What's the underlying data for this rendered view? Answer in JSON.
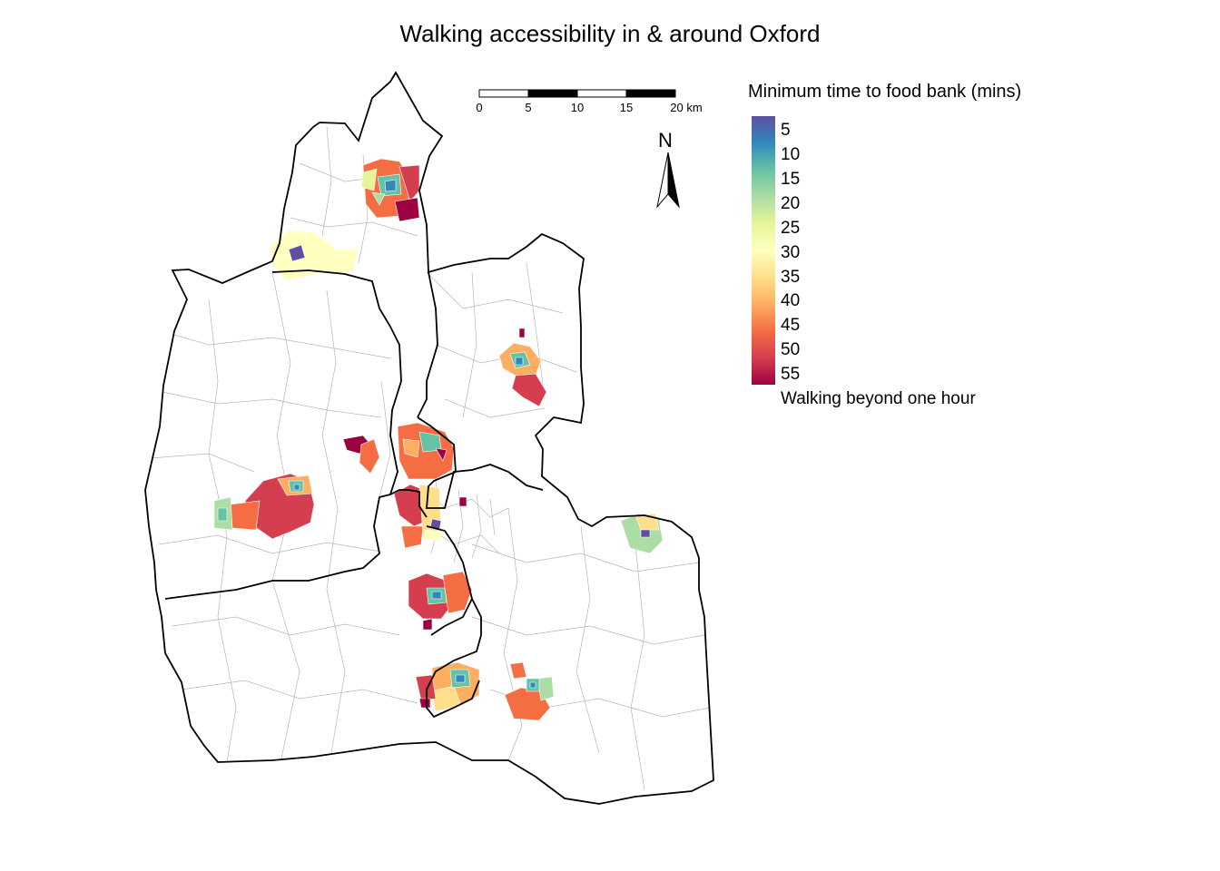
{
  "title": "Walking accessibility in & around Oxford",
  "legend": {
    "title": "Minimum time to food bank (mins)",
    "ticks": [
      "5",
      "10",
      "15",
      "20",
      "25",
      "30",
      "35",
      "40",
      "45",
      "50",
      "55"
    ],
    "na_label": "Walking beyond one hour",
    "colors": [
      "#5e4fa2",
      "#3288bd",
      "#66c2a5",
      "#abdda4",
      "#e6f598",
      "#ffffbf",
      "#fee08b",
      "#fdae61",
      "#f46d43",
      "#d53e4f",
      "#9e0142"
    ]
  },
  "scale_bar": {
    "labels": [
      "0",
      "5",
      "10",
      "15",
      "20 km"
    ]
  },
  "north_arrow": {
    "label": "N",
    "icon": "north-arrow-icon"
  }
}
